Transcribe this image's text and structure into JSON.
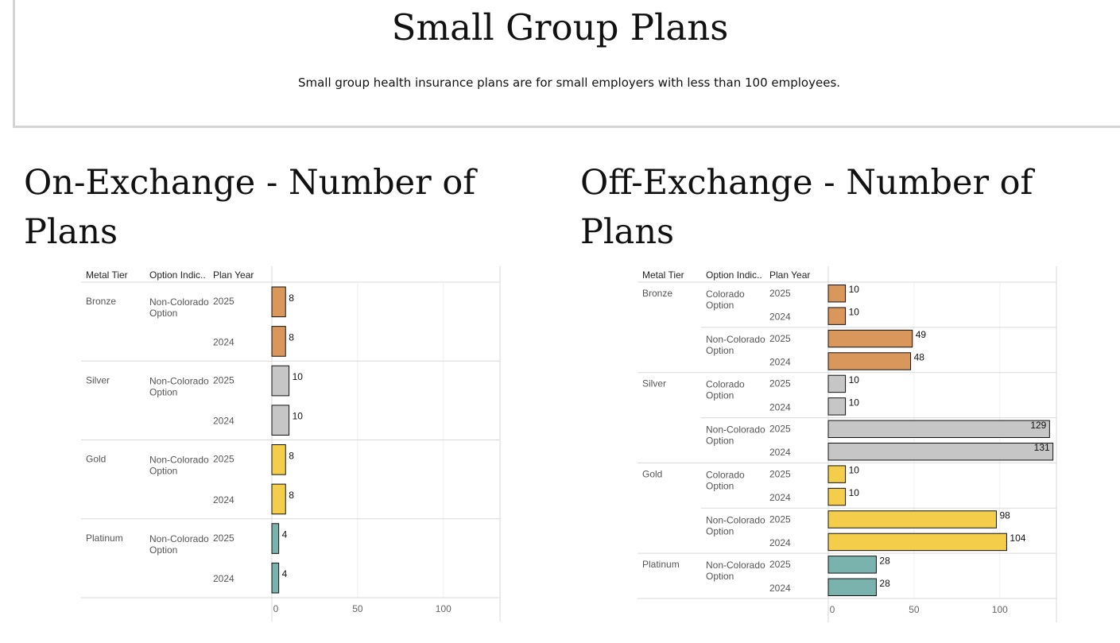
{
  "header": {
    "title": "Small Group Plans",
    "subtitle": "Small group health insurance plans are for small employers with less than 100 employees."
  },
  "colors": {
    "Bronze": "#d9975c",
    "Silver": "#c6c6c6",
    "Gold": "#f4ce4a",
    "Platinum": "#7ab3ad"
  },
  "chart_data": [
    {
      "type": "bar",
      "title": "On-Exchange - Number of Plans",
      "column_headers": [
        "Metal Tier",
        "Option Indic..",
        "Plan Year"
      ],
      "xticks": [
        0,
        50,
        100
      ],
      "xlim": [
        0,
        133
      ],
      "rows": [
        {
          "tier": "Bronze",
          "option": "Non-Colorado Option",
          "year": "2025",
          "value": 8
        },
        {
          "tier": "Bronze",
          "option": "Non-Colorado Option",
          "year": "2024",
          "value": 8
        },
        {
          "tier": "Silver",
          "option": "Non-Colorado Option",
          "year": "2025",
          "value": 10
        },
        {
          "tier": "Silver",
          "option": "Non-Colorado Option",
          "year": "2024",
          "value": 10
        },
        {
          "tier": "Gold",
          "option": "Non-Colorado Option",
          "year": "2025",
          "value": 8
        },
        {
          "tier": "Gold",
          "option": "Non-Colorado Option",
          "year": "2024",
          "value": 8
        },
        {
          "tier": "Platinum",
          "option": "Non-Colorado Option",
          "year": "2025",
          "value": 4
        },
        {
          "tier": "Platinum",
          "option": "Non-Colorado Option",
          "year": "2024",
          "value": 4
        }
      ]
    },
    {
      "type": "bar",
      "title": "Off-Exchange - Number of Plans",
      "column_headers": [
        "Metal Tier",
        "Option Indic..",
        "Plan Year"
      ],
      "xticks": [
        0,
        50,
        100
      ],
      "xlim": [
        0,
        133
      ],
      "rows": [
        {
          "tier": "Bronze",
          "option": "Colorado Option",
          "year": "2025",
          "value": 10
        },
        {
          "tier": "Bronze",
          "option": "Colorado Option",
          "year": "2024",
          "value": 10
        },
        {
          "tier": "Bronze",
          "option": "Non-Colorado Option",
          "year": "2025",
          "value": 49
        },
        {
          "tier": "Bronze",
          "option": "Non-Colorado Option",
          "year": "2024",
          "value": 48
        },
        {
          "tier": "Silver",
          "option": "Colorado Option",
          "year": "2025",
          "value": 10
        },
        {
          "tier": "Silver",
          "option": "Colorado Option",
          "year": "2024",
          "value": 10
        },
        {
          "tier": "Silver",
          "option": "Non-Colorado Option",
          "year": "2025",
          "value": 129
        },
        {
          "tier": "Silver",
          "option": "Non-Colorado Option",
          "year": "2024",
          "value": 131
        },
        {
          "tier": "Gold",
          "option": "Colorado Option",
          "year": "2025",
          "value": 10
        },
        {
          "tier": "Gold",
          "option": "Colorado Option",
          "year": "2024",
          "value": 10
        },
        {
          "tier": "Gold",
          "option": "Non-Colorado Option",
          "year": "2025",
          "value": 98
        },
        {
          "tier": "Gold",
          "option": "Non-Colorado Option",
          "year": "2024",
          "value": 104
        },
        {
          "tier": "Platinum",
          "option": "Non-Colorado Option",
          "year": "2025",
          "value": 28
        },
        {
          "tier": "Platinum",
          "option": "Non-Colorado Option",
          "year": "2024",
          "value": 28
        }
      ]
    }
  ]
}
